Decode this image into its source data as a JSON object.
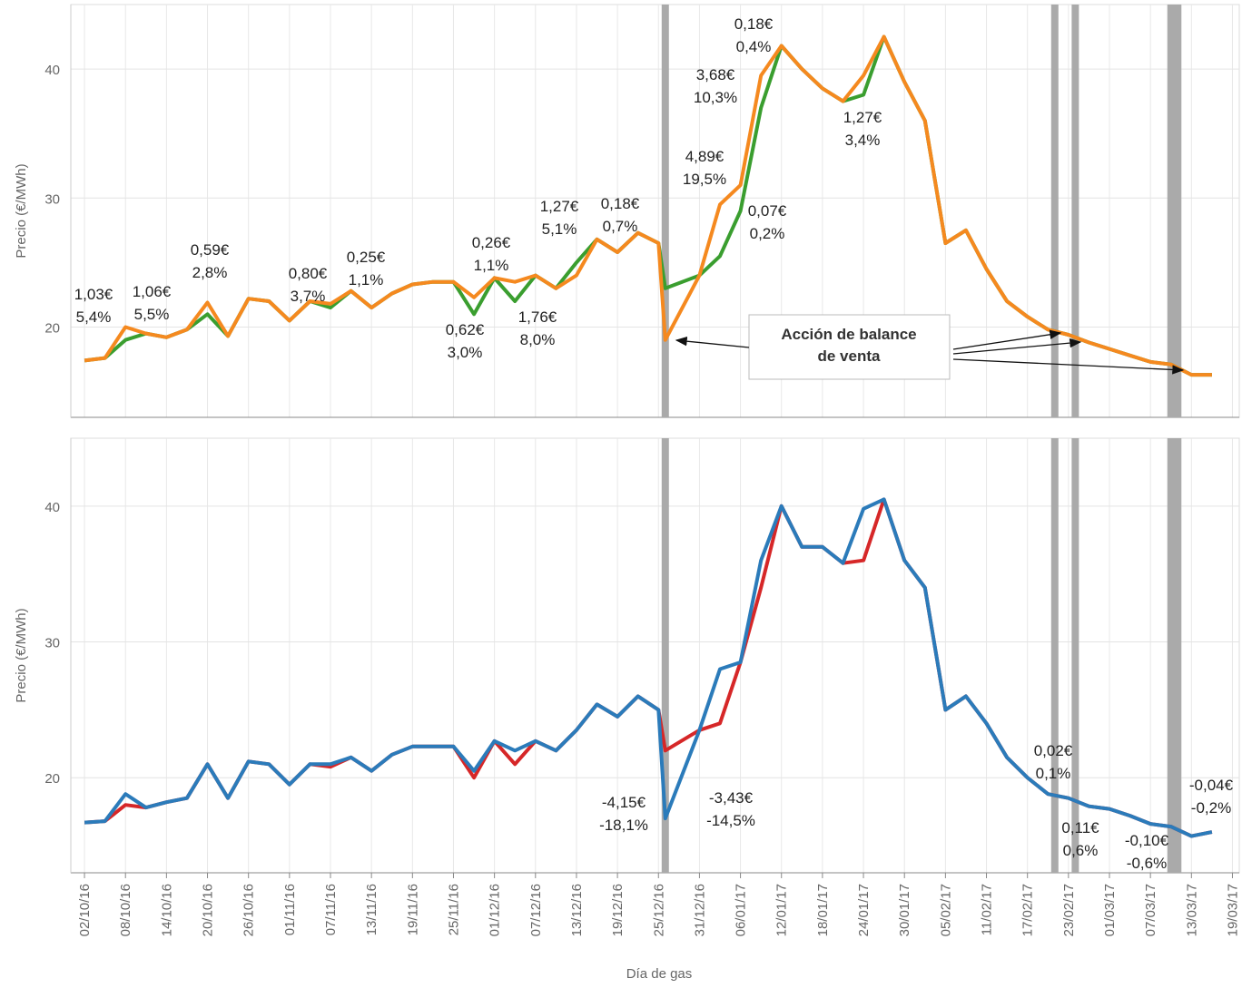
{
  "chart_data": [
    {
      "type": "line",
      "y_label": "Precio (€/MWh)",
      "x": [
        "02/10/16",
        "05/10/16",
        "08/10/16",
        "11/10/16",
        "14/10/16",
        "17/10/16",
        "20/10/16",
        "23/10/16",
        "26/10/16",
        "29/10/16",
        "01/11/16",
        "04/11/16",
        "07/11/16",
        "10/11/16",
        "13/11/16",
        "16/11/16",
        "19/11/16",
        "22/11/16",
        "25/11/16",
        "28/11/16",
        "01/12/16",
        "04/12/16",
        "07/12/16",
        "10/12/16",
        "13/12/16",
        "16/12/16",
        "19/12/16",
        "22/12/16",
        "25/12/16",
        "26/12/16",
        "31/12/16",
        "03/01/17",
        "06/01/17",
        "09/01/17",
        "12/01/17",
        "15/01/17",
        "18/01/17",
        "21/01/17",
        "24/01/17",
        "27/01/17",
        "30/01/17",
        "02/02/17",
        "05/02/17",
        "08/02/17",
        "11/02/17",
        "14/02/17",
        "17/02/17",
        "20/02/17",
        "23/02/17",
        "26/02/17",
        "01/03/17",
        "04/03/17",
        "07/03/17",
        "10/03/17",
        "13/03/17",
        "16/03/17"
      ],
      "series": [
        {
          "color": "#3a9e2f",
          "values": [
            17.4,
            17.6,
            19.0,
            19.5,
            19.2,
            19.8,
            21.0,
            19.3,
            22.2,
            22.0,
            20.5,
            22.0,
            21.5,
            22.8,
            21.5,
            22.6,
            23.3,
            23.5,
            23.5,
            21.0,
            23.8,
            22.0,
            24.0,
            23.0,
            25.0,
            26.8,
            25.8,
            27.3,
            26.5,
            23.0,
            24.0,
            25.5,
            29.0,
            37.0,
            41.8,
            40.0,
            38.5,
            37.5,
            38.0,
            42.5,
            39.0,
            36.0,
            26.5,
            27.5,
            24.5,
            22.0,
            20.8,
            19.8,
            19.4,
            18.8,
            18.3,
            17.8,
            17.3,
            17.1,
            16.3,
            16.3
          ]
        },
        {
          "color": "#f5891f",
          "values": [
            17.4,
            17.6,
            20.0,
            19.5,
            19.2,
            19.8,
            21.9,
            19.3,
            22.2,
            22.0,
            20.5,
            22.0,
            21.8,
            22.8,
            21.5,
            22.6,
            23.3,
            23.5,
            23.5,
            22.3,
            23.8,
            23.5,
            24.0,
            23.0,
            24.0,
            26.8,
            25.8,
            27.3,
            26.5,
            19.0,
            24.0,
            29.5,
            31.0,
            39.5,
            41.8,
            40.0,
            38.5,
            37.5,
            39.5,
            42.5,
            39.0,
            36.0,
            26.5,
            27.5,
            24.5,
            22.0,
            20.8,
            19.8,
            19.4,
            18.8,
            18.3,
            17.8,
            17.3,
            17.1,
            16.3,
            16.3
          ]
        }
      ],
      "xlim": [
        "30/09/16",
        "20/03/17"
      ],
      "ylim": [
        13,
        45
      ],
      "yticks": [
        20,
        30,
        40
      ],
      "highlight_dates": [
        "26/12/16",
        "21/02/17",
        "24/02/17",
        "10/03/17",
        "11/03/17"
      ],
      "annotations": [
        [
          "1,03€",
          "5,4%"
        ],
        [
          "1,06€",
          "5,5%"
        ],
        [
          "0,59€",
          "2,8%"
        ],
        [
          "0,80€",
          "3,7%"
        ],
        [
          "0,25€",
          "1,1%"
        ],
        [
          "0,62€",
          "3,0%"
        ],
        [
          "0,26€",
          "1,1%"
        ],
        [
          "1,76€",
          "8,0%"
        ],
        [
          "1,27€",
          "5,1%"
        ],
        [
          "0,18€",
          "0,7%"
        ],
        [
          "4,89€",
          "19,5%"
        ],
        [
          "3,68€",
          "10,3%"
        ],
        [
          "0,18€",
          "0,4%"
        ],
        [
          "0,07€",
          "0,2%"
        ],
        [
          "1,27€",
          "3,4%"
        ]
      ],
      "callout": [
        "Acción de balance",
        "de venta"
      ]
    },
    {
      "type": "line",
      "y_label": "Precio (€/MWh)",
      "x_label": "Día de gas",
      "x": [
        "02/10/16",
        "05/10/16",
        "08/10/16",
        "11/10/16",
        "14/10/16",
        "17/10/16",
        "20/10/16",
        "23/10/16",
        "26/10/16",
        "29/10/16",
        "01/11/16",
        "04/11/16",
        "07/11/16",
        "10/11/16",
        "13/11/16",
        "16/11/16",
        "19/11/16",
        "22/11/16",
        "25/11/16",
        "28/11/16",
        "01/12/16",
        "04/12/16",
        "07/12/16",
        "10/12/16",
        "13/12/16",
        "16/12/16",
        "19/12/16",
        "22/12/16",
        "25/12/16",
        "26/12/16",
        "31/12/16",
        "03/01/17",
        "06/01/17",
        "09/01/17",
        "12/01/17",
        "15/01/17",
        "18/01/17",
        "21/01/17",
        "24/01/17",
        "27/01/17",
        "30/01/17",
        "02/02/17",
        "05/02/17",
        "08/02/17",
        "11/02/17",
        "14/02/17",
        "17/02/17",
        "20/02/17",
        "23/02/17",
        "26/02/17",
        "01/03/17",
        "04/03/17",
        "07/03/17",
        "10/03/17",
        "13/03/17",
        "16/03/17"
      ],
      "series": [
        {
          "color": "#d62728",
          "values": [
            16.7,
            16.8,
            18.0,
            17.8,
            18.2,
            18.5,
            21.0,
            18.5,
            21.2,
            21.0,
            19.5,
            21.0,
            20.8,
            21.5,
            20.5,
            21.7,
            22.3,
            22.3,
            22.3,
            20.0,
            22.7,
            21.0,
            22.7,
            22.0,
            23.5,
            25.4,
            24.5,
            26.0,
            25.0,
            22.0,
            23.5,
            24.0,
            28.5,
            34.0,
            40.0,
            37.0,
            37.0,
            35.8,
            36.0,
            40.5,
            36.0,
            34.0,
            25.0,
            26.0,
            24.0,
            21.5,
            20.0,
            18.8,
            18.5,
            17.9,
            17.7,
            17.2,
            16.6,
            16.4,
            15.7,
            16.0
          ]
        },
        {
          "color": "#2b7bba",
          "values": [
            16.7,
            16.8,
            18.8,
            17.8,
            18.2,
            18.5,
            21.0,
            18.5,
            21.2,
            21.0,
            19.5,
            21.0,
            21.0,
            21.5,
            20.5,
            21.7,
            22.3,
            22.3,
            22.3,
            20.5,
            22.7,
            22.0,
            22.7,
            22.0,
            23.5,
            25.4,
            24.5,
            26.0,
            25.0,
            17.0,
            23.5,
            28.0,
            28.5,
            36.0,
            40.0,
            37.0,
            37.0,
            35.8,
            39.8,
            40.5,
            36.0,
            34.0,
            25.0,
            26.0,
            24.0,
            21.5,
            20.0,
            18.8,
            18.5,
            17.9,
            17.7,
            17.2,
            16.6,
            16.4,
            15.7,
            16.0
          ]
        }
      ],
      "xlim": [
        "30/09/16",
        "20/03/17"
      ],
      "ylim": [
        13,
        45
      ],
      "yticks": [
        20,
        30,
        40
      ],
      "xticks": [
        "02/10/16",
        "08/10/16",
        "14/10/16",
        "20/10/16",
        "26/10/16",
        "01/11/16",
        "07/11/16",
        "13/11/16",
        "19/11/16",
        "25/11/16",
        "01/12/16",
        "07/12/16",
        "13/12/16",
        "19/12/16",
        "25/12/16",
        "31/12/16",
        "06/01/17",
        "12/01/17",
        "18/01/17",
        "24/01/17",
        "30/01/17",
        "05/02/17",
        "11/02/17",
        "17/02/17",
        "23/02/17",
        "01/03/17",
        "07/03/17",
        "13/03/17",
        "19/03/17"
      ],
      "highlight_dates": [
        "26/12/16",
        "21/02/17",
        "24/02/17",
        "10/03/17",
        "11/03/17"
      ],
      "annotations": [
        [
          "-4,15€",
          "-18,1%"
        ],
        [
          "-3,43€",
          "-14,5%"
        ],
        [
          "0,02€",
          "0,1%"
        ],
        [
          "0,11€",
          "0,6%"
        ],
        [
          "-0,10€",
          "-0,6%"
        ],
        [
          "-0,04€",
          "-0,2%"
        ]
      ]
    }
  ]
}
